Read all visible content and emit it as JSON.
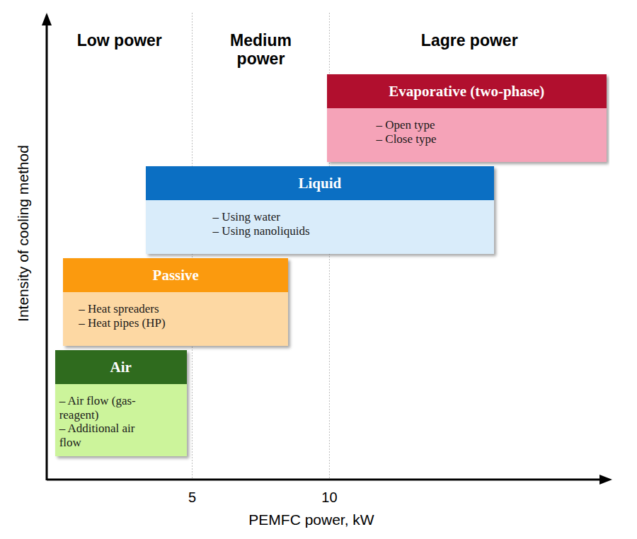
{
  "chart_data": {
    "type": "range",
    "orientation": "horizontal",
    "x_label": "PEMFC power, kW",
    "y_label": "Intensity of cooling method",
    "categories": [
      "Air",
      "Passive",
      "Liquid",
      "Evaporative (two-phase)"
    ],
    "values": [
      [
        0,
        4.8
      ],
      [
        0.3,
        8.5
      ],
      [
        3.3,
        16
      ],
      [
        9.9,
        20.1
      ]
    ],
    "items": [
      [
        "– Air flow (gas-reagent)",
        "– Additional air flow"
      ],
      [
        "– Heat spreaders",
        "– Heat pipes (HP)"
      ],
      [
        "– Using water",
        "– Using nanoliquids"
      ],
      [
        "– Open type",
        "– Close type"
      ]
    ],
    "colors": [
      "#2f6b1e",
      "#fb9a0e",
      "#0b6fc3",
      "#b10f2e"
    ],
    "regions": [
      "Low power",
      "Medium power",
      "Lagre power"
    ],
    "xlim": [
      -0.3,
      20.2
    ],
    "xticks": [
      5,
      10
    ],
    "grid": true,
    "tick_labels": "x"
  }
}
